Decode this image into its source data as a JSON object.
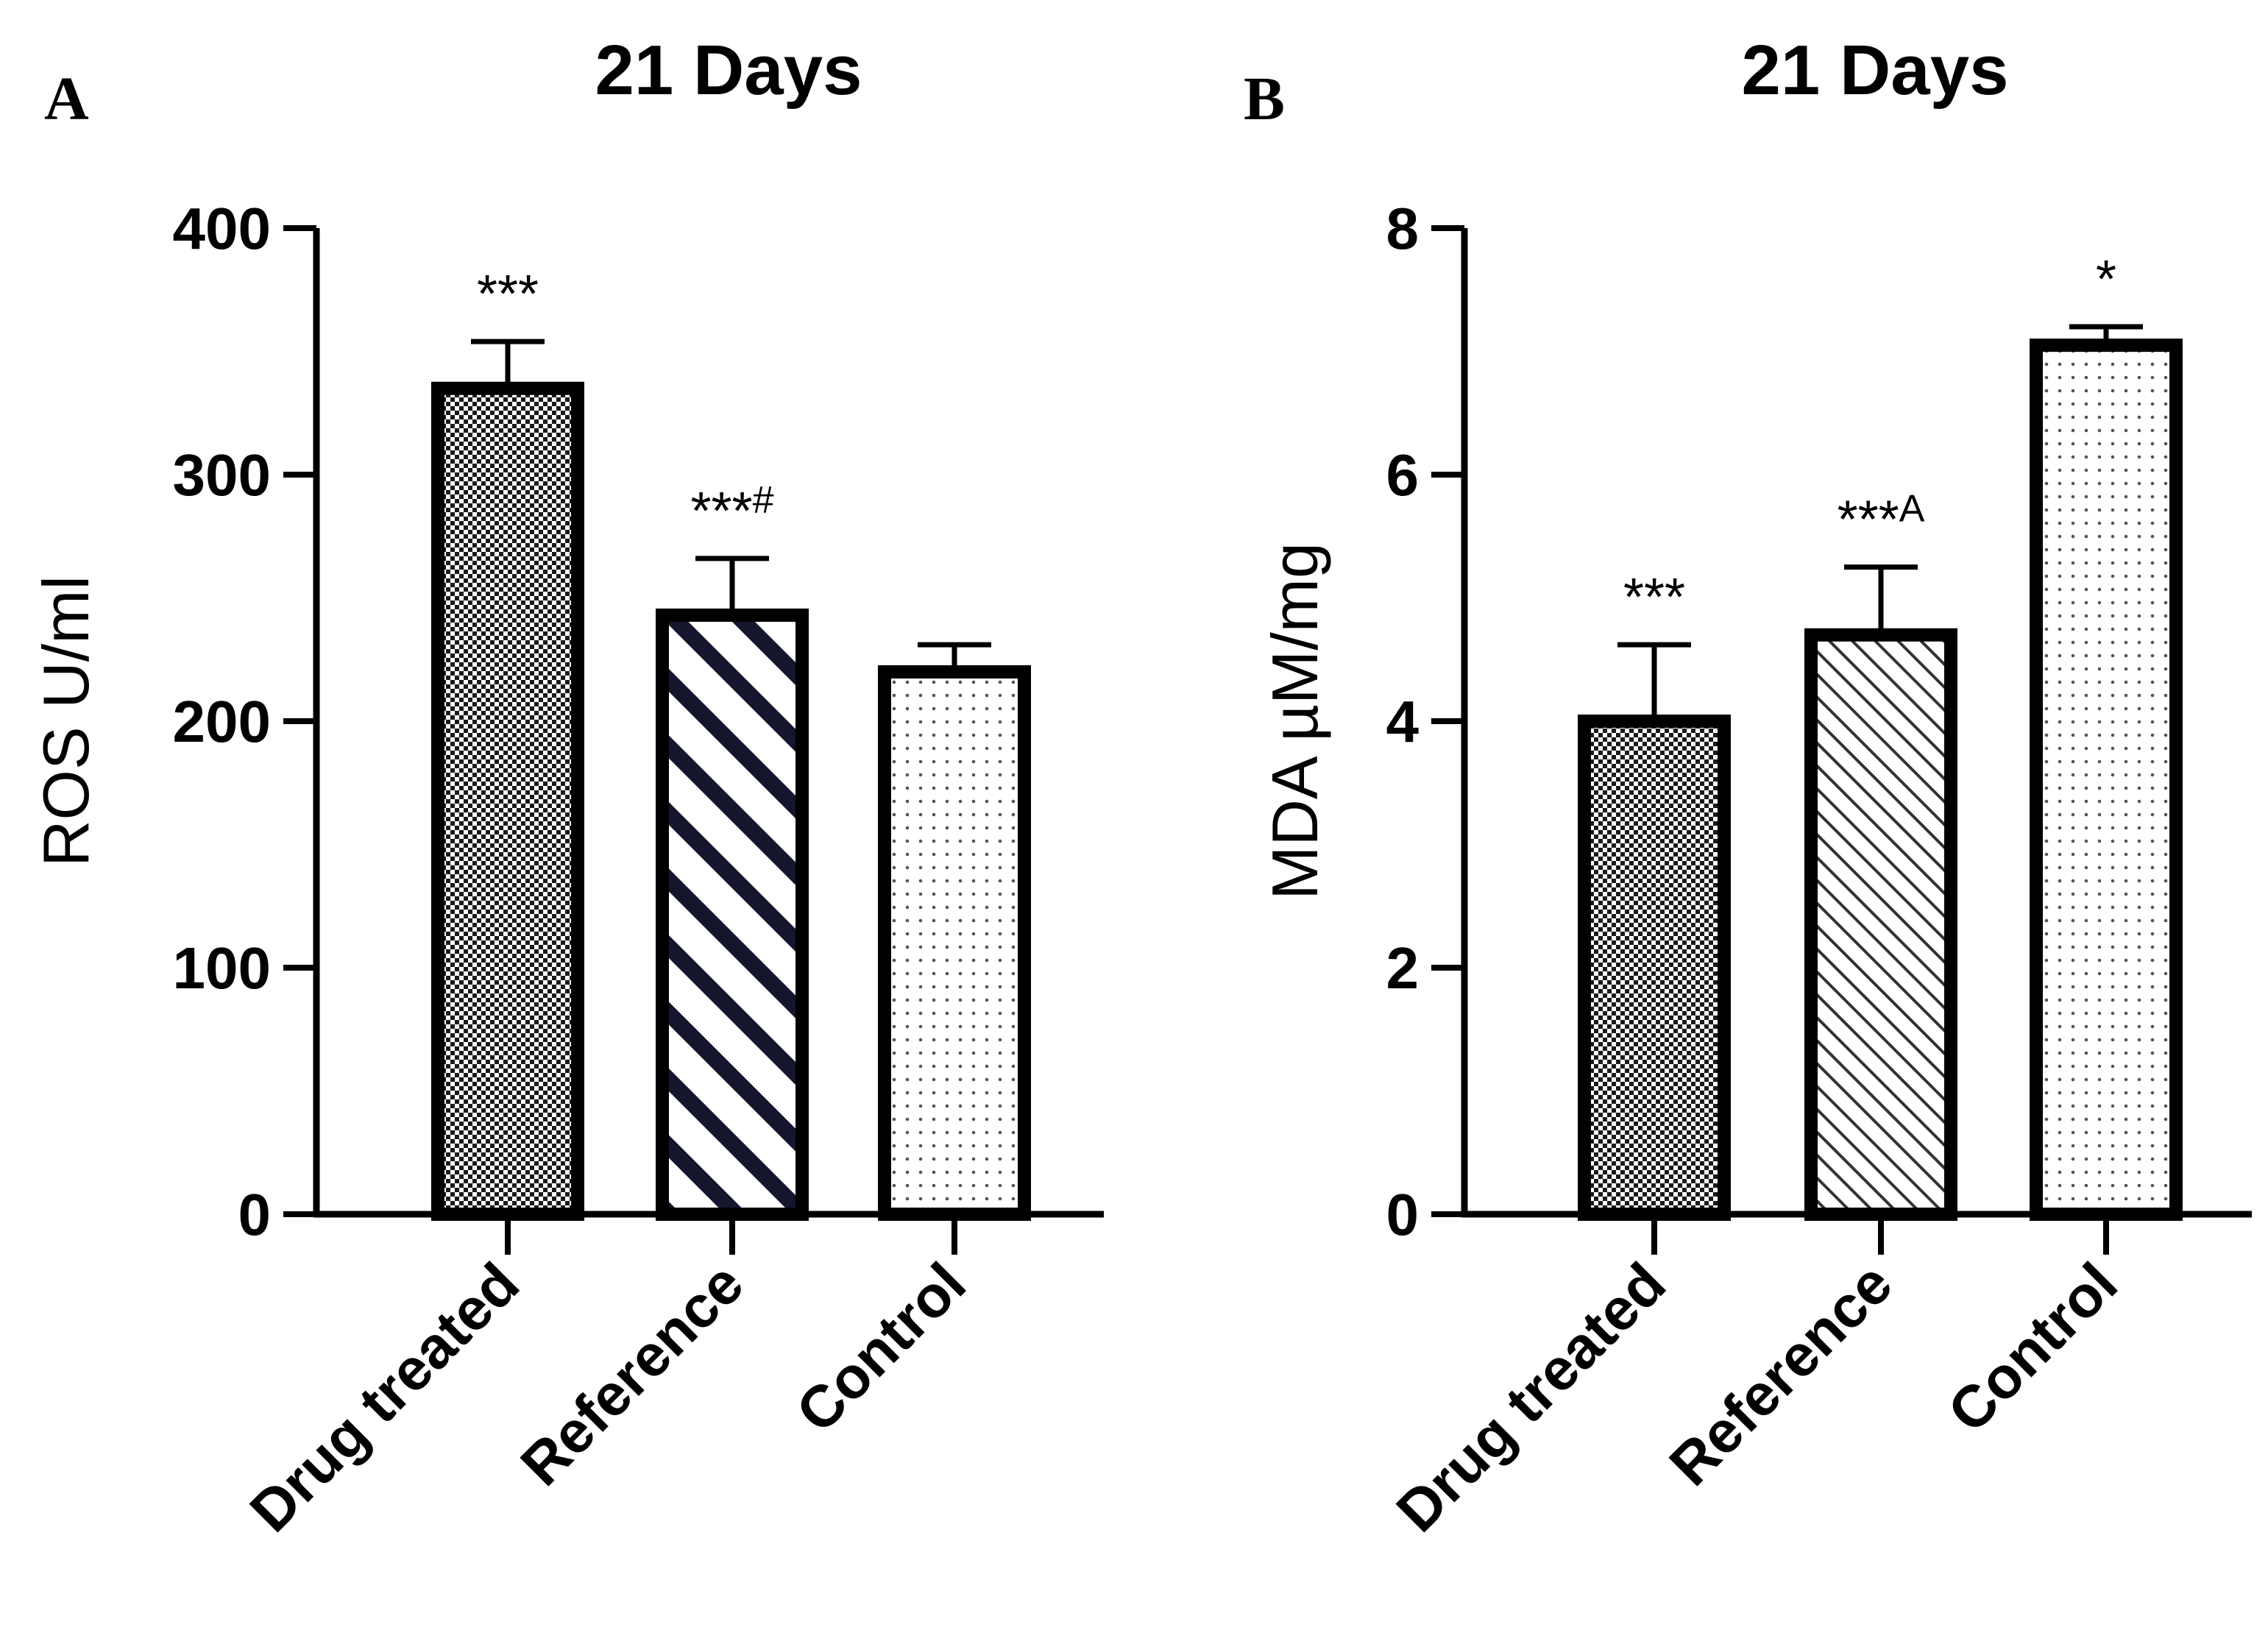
{
  "chart_data": [
    {
      "panel": "A",
      "type": "bar",
      "title": "21 Days",
      "xlabel": "",
      "ylabel": "ROS U/ml",
      "ylim": [
        0,
        400
      ],
      "yticks": [
        0,
        100,
        200,
        300,
        400
      ],
      "categories": [
        "Drug treated",
        "Reference",
        "Control"
      ],
      "values": [
        335,
        243,
        220
      ],
      "errors": [
        19,
        23,
        11
      ],
      "patterns": [
        "checker",
        "stripe-dark",
        "dots"
      ],
      "significance": [
        {
          "main": "***",
          "sup": ""
        },
        {
          "main": "***",
          "sup": "#"
        },
        {
          "main": "",
          "sup": ""
        }
      ]
    },
    {
      "panel": "B",
      "type": "bar",
      "title": "21 Days",
      "xlabel": "",
      "ylabel": "MDA µM/mg",
      "ylim": [
        0,
        8
      ],
      "yticks": [
        0,
        2,
        4,
        6,
        8
      ],
      "categories": [
        "Drug treated",
        "Reference",
        "Control"
      ],
      "values": [
        4.0,
        4.7,
        7.05
      ],
      "errors": [
        0.62,
        0.55,
        0.15
      ],
      "patterns": [
        "checker",
        "stripe-light",
        "dots"
      ],
      "significance": [
        {
          "main": "***",
          "sup": ""
        },
        {
          "main": "***",
          "sup": "A"
        },
        {
          "main": "*",
          "sup": ""
        }
      ]
    }
  ]
}
